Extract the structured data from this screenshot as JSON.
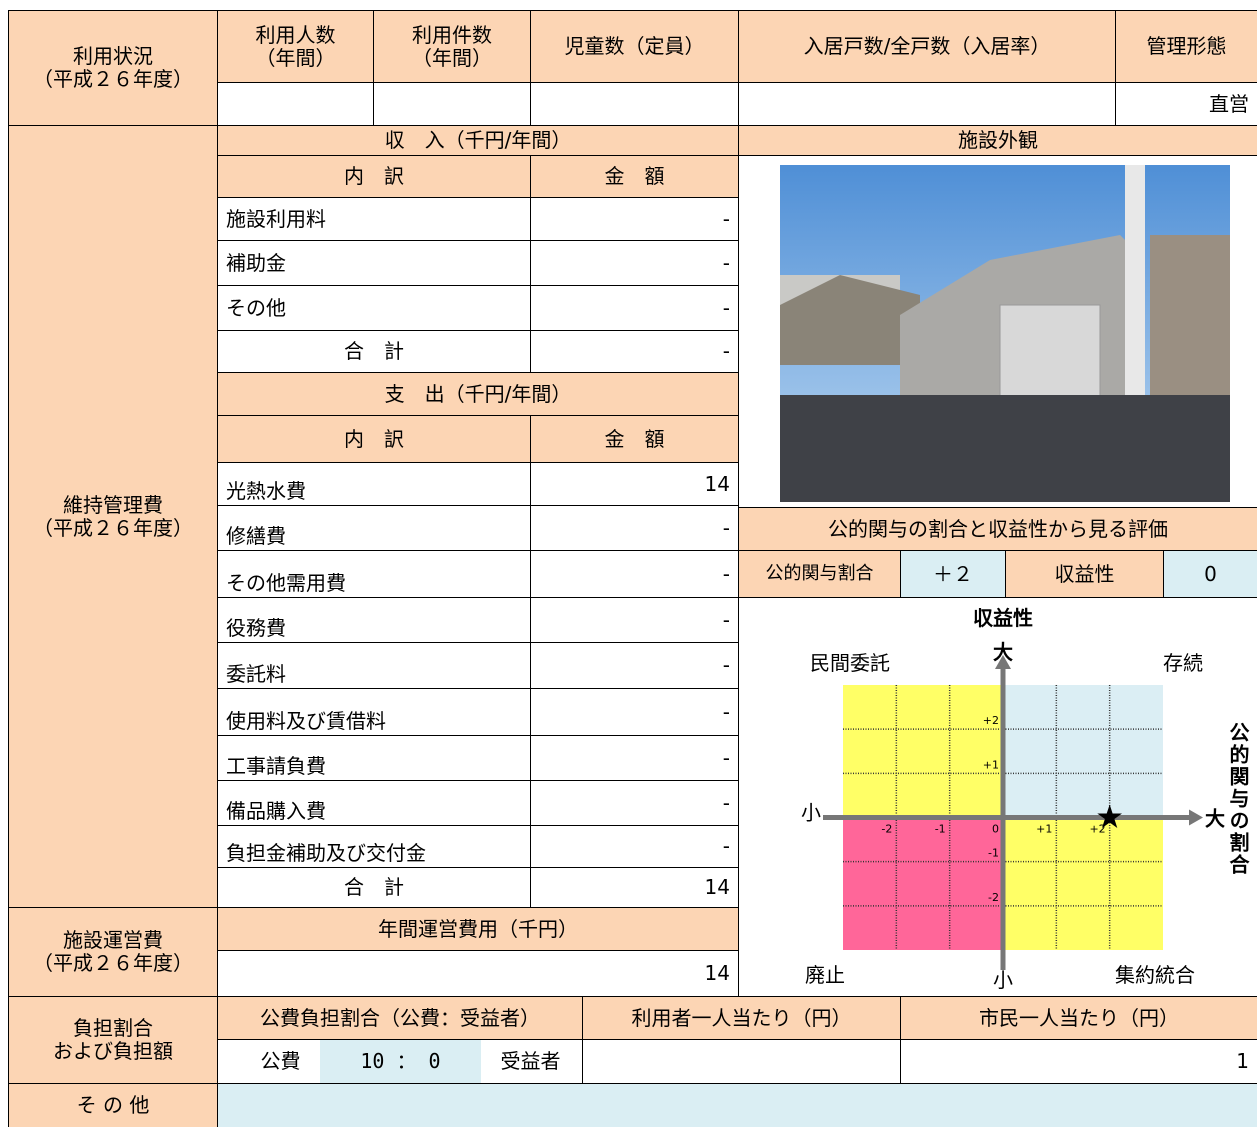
{
  "usage": {
    "label": [
      "利用状況",
      "（平成２６年度）"
    ],
    "columns": [
      [
        "利用人数",
        "（年間）"
      ],
      [
        "利用件数",
        "（年間）"
      ],
      "児童数（定員）",
      "入居戸数/全戸数（入居率）",
      "管理形態"
    ],
    "management": "直営"
  },
  "maintenance": {
    "label": [
      "維持管理費",
      "（平成２６年度）"
    ],
    "income": {
      "title": "収　入（千円/年間）",
      "head": [
        "内　訳",
        "金　額"
      ],
      "rows": [
        [
          "施設利用料",
          "-"
        ],
        [
          "補助金",
          "-"
        ],
        [
          "その他",
          "-"
        ],
        [
          "合　計",
          "-"
        ]
      ]
    },
    "expense": {
      "title": "支　出（千円/年間）",
      "head": [
        "内　訳",
        "金　額"
      ],
      "rows": [
        [
          "光熱水費",
          14
        ],
        [
          "修繕費",
          "-"
        ],
        [
          "その他需用費",
          "-"
        ],
        [
          "役務費",
          "-"
        ],
        [
          "委託料",
          "-"
        ],
        [
          "使用料及び賃借料",
          "-"
        ],
        [
          "工事請負費",
          "-"
        ],
        [
          "備品購入費",
          "-"
        ],
        [
          "負担金補助及び交付金",
          "-"
        ],
        [
          "合　計",
          14
        ]
      ]
    }
  },
  "operation": {
    "label": [
      "施設運営費",
      "（平成２６年度）"
    ],
    "title": "年間運営費用（千円）",
    "value": 14
  },
  "burden": {
    "label": [
      "負担割合",
      "および負担額"
    ],
    "head": [
      "公費負担割合（公費：受益者）",
      "利用者一人当たり（円）",
      "市民一人当たり（円）"
    ],
    "public": "公費",
    "ratio": "10 ： 0",
    "beneficiary": "受益者",
    "per_citizen": 1
  },
  "other": {
    "label": "そ の 他"
  },
  "exterior": {
    "title": "施設外観"
  },
  "evaluation": {
    "title": "公的関与の割合と収益性から見る評価",
    "public_label": "公的関与割合",
    "public_share": {
      "value": 2,
      "label": "＋２"
    },
    "profit_label": "収益性",
    "profitability": 0,
    "matrix": {
      "y_title": "収益性",
      "x_title": "公的関与の割合",
      "y_high": "大",
      "y_low": "小",
      "x_low": "小",
      "x_high": "大",
      "quadrants": {
        "top_left": "民間委託",
        "top_right": "存続",
        "bottom_left": "廃止",
        "bottom_right": "集約統合"
      },
      "xlim": [
        -3,
        3
      ],
      "ylim": [
        -3,
        3
      ],
      "xticks": [
        -2,
        -1,
        0,
        {
          "value": 1,
          "label": "+1"
        },
        {
          "value": 2,
          "label": "+2"
        }
      ],
      "yticks": [
        {
          "value": 2,
          "label": "+2"
        },
        {
          "value": 1,
          "label": "+1"
        },
        -1,
        -2
      ]
    }
  }
}
